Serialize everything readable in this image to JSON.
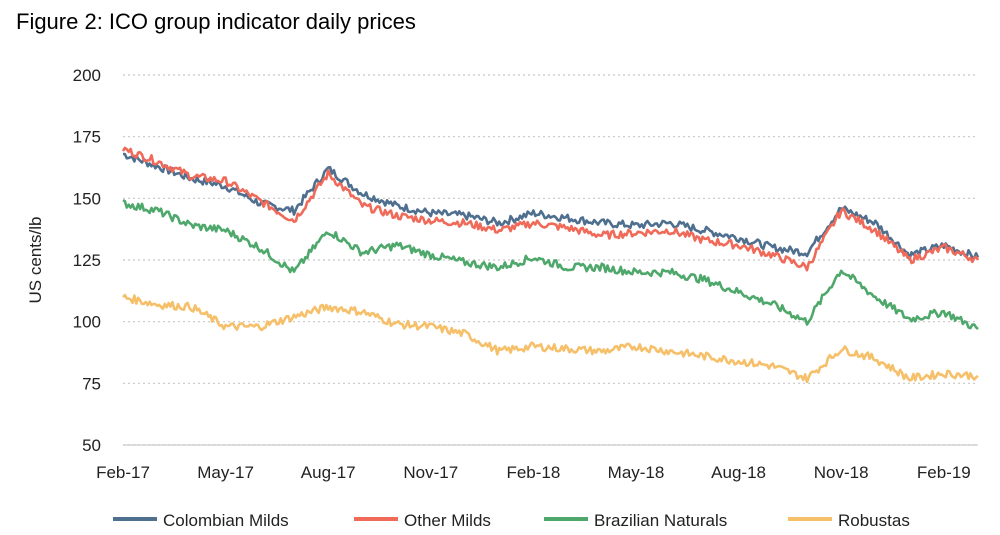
{
  "chart_data": {
    "type": "line",
    "title": "Figure 2: ICO group indicator daily prices",
    "ylabel": "US cents/lb",
    "xlabel": "",
    "ylim": [
      50,
      200
    ],
    "yticks": [
      "200",
      "175",
      "150",
      "125",
      "100",
      "75",
      "50"
    ],
    "xticks": [
      "Feb-17",
      "May-17",
      "Aug-17",
      "Nov-17",
      "Feb-18",
      "May-18",
      "Aug-18",
      "Nov-18",
      "Feb-19"
    ],
    "grid": "horizontal dotted",
    "legend_position": "bottom",
    "x": [
      "Feb-17",
      "Mar-17",
      "Apr-17",
      "May-17",
      "Jun-17",
      "Jul-17",
      "Aug-17",
      "Sep-17",
      "Oct-17",
      "Nov-17",
      "Dec-17",
      "Jan-18",
      "Feb-18",
      "Mar-18",
      "Apr-18",
      "May-18",
      "Jun-18",
      "Jul-18",
      "Aug-18",
      "Sep-18",
      "Oct-18",
      "Nov-18",
      "Dec-18",
      "Jan-19",
      "Feb-19",
      "Mar-19"
    ],
    "series": [
      {
        "name": "Colombian Milds",
        "color": "#4f6f8f",
        "values": [
          168,
          163,
          158,
          155,
          148,
          145,
          162,
          152,
          147,
          144,
          143,
          140,
          144,
          142,
          140,
          139,
          140,
          137,
          134,
          130,
          128,
          146,
          140,
          127,
          131,
          126
        ]
      },
      {
        "name": "Other Milds",
        "color": "#f06a5a",
        "values": [
          170,
          165,
          159,
          157,
          149,
          141,
          160,
          147,
          143,
          141,
          140,
          137,
          140,
          138,
          135,
          136,
          137,
          133,
          131,
          127,
          122,
          145,
          137,
          125,
          130,
          125
        ]
      },
      {
        "name": "Brazilian Naturals",
        "color": "#4fa86b",
        "values": [
          148,
          145,
          139,
          137,
          130,
          120,
          137,
          128,
          131,
          127,
          124,
          122,
          126,
          122,
          122,
          120,
          120,
          117,
          112,
          107,
          100,
          121,
          110,
          101,
          104,
          97
        ]
      },
      {
        "name": "Robustas",
        "color": "#f6c06a",
        "values": [
          110,
          107,
          106,
          98,
          98,
          102,
          106,
          104,
          99,
          98,
          95,
          88,
          90,
          89,
          88,
          90,
          88,
          86,
          84,
          82,
          77,
          89,
          85,
          77,
          79,
          78
        ]
      }
    ]
  }
}
